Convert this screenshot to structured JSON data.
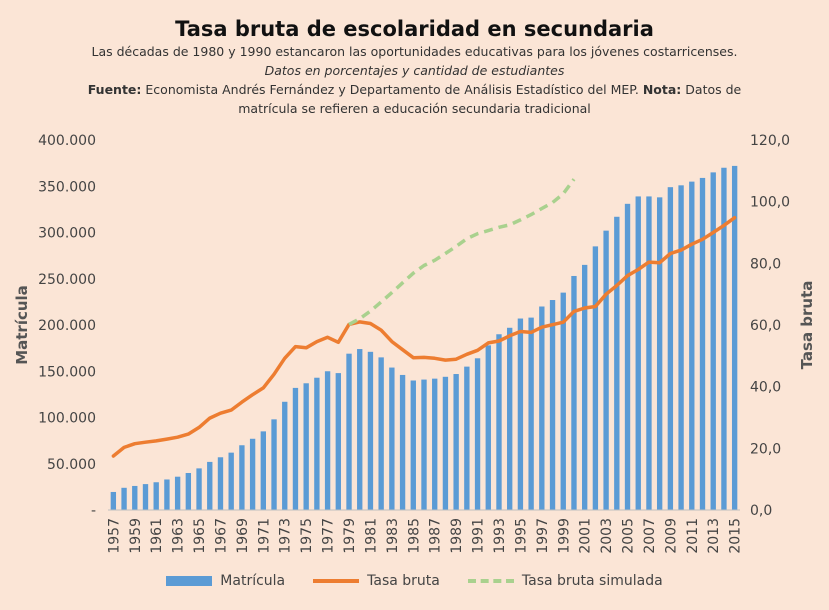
{
  "header": {
    "title": "Tasa bruta de escolaridad en secundaria",
    "subtitle": "Las décadas de 1980 y 1990 estancaron las oportunidades educativas para los jóvenes costarricenses.",
    "units": "Datos en porcentajes y cantidad de estudiantes",
    "source_label": "Fuente:",
    "source_text": "Economista Andrés Fernández y Departamento de Análisis Estadístico del MEP.",
    "note_label": "Nota:",
    "note_text": "Datos de",
    "note_text2": "matrícula se refieren a educación secundaria tradicional"
  },
  "colors": {
    "bar": "#5b9bd5",
    "line": "#ed7d31",
    "dashed": "#a9d18e",
    "background": "#fbe5d6"
  },
  "chart_data": {
    "type": "bar+line",
    "title": "Tasa bruta de escolaridad en secundaria",
    "xlabel": "",
    "ylabel_left": "Matrícula",
    "ylabel_right": "Tasa bruta",
    "ylim_left": [
      0,
      400000
    ],
    "ylim_right": [
      0,
      120
    ],
    "yticks_left": [
      "-",
      "50.000",
      "100.000",
      "150.000",
      "200.000",
      "250.000",
      "300.000",
      "350.000",
      "400.000"
    ],
    "yticks_right": [
      "0,0",
      "20,0",
      "40,0",
      "60,0",
      "80,0",
      "100,0",
      "120,0"
    ],
    "x": [
      1957,
      1958,
      1959,
      1960,
      1961,
      1962,
      1963,
      1964,
      1965,
      1966,
      1967,
      1968,
      1969,
      1970,
      1971,
      1972,
      1973,
      1974,
      1975,
      1976,
      1977,
      1978,
      1979,
      1980,
      1981,
      1982,
      1983,
      1984,
      1985,
      1986,
      1987,
      1988,
      1989,
      1990,
      1991,
      1992,
      1993,
      1994,
      1995,
      1996,
      1997,
      1998,
      1999,
      2000,
      2001,
      2002,
      2003,
      2004,
      2005,
      2006,
      2007,
      2008,
      2009,
      2010,
      2011,
      2012,
      2013,
      2014,
      2015
    ],
    "xtick_labels": [
      "1957",
      "1959",
      "1961",
      "1963",
      "1965",
      "1967",
      "1969",
      "1971",
      "1973",
      "1975",
      "1977",
      "1979",
      "1981",
      "1983",
      "1985",
      "1987",
      "1989",
      "1991",
      "1993",
      "1995",
      "1997",
      "1999",
      "2001",
      "2003",
      "2005",
      "2007",
      "2009",
      "2011",
      "2013",
      "2015"
    ],
    "series": [
      {
        "name": "Matrícula",
        "type": "bar",
        "axis": "left",
        "values": [
          19500,
          24000,
          26000,
          28000,
          30000,
          33000,
          36000,
          40000,
          45000,
          52000,
          57000,
          62000,
          70000,
          77000,
          85000,
          98000,
          117000,
          132000,
          137000,
          143000,
          150000,
          148000,
          169000,
          174000,
          171000,
          165000,
          154000,
          146000,
          140000,
          141000,
          142000,
          144000,
          147000,
          155000,
          164000,
          178000,
          190000,
          197000,
          207000,
          208000,
          220000,
          227000,
          235000,
          253000,
          265000,
          285000,
          302000,
          317000,
          331000,
          339000,
          339000,
          338000,
          349000,
          351000,
          355000,
          359000,
          365000,
          370000,
          372000
        ]
      },
      {
        "name": "Tasa bruta",
        "type": "line",
        "axis": "right",
        "values": [
          17.5,
          20.3,
          21.5,
          22.0,
          22.4,
          23.0,
          23.6,
          24.6,
          26.8,
          29.8,
          31.4,
          32.4,
          35.0,
          37.4,
          39.6,
          44.0,
          49.2,
          53.0,
          52.6,
          54.6,
          56.0,
          54.4,
          60.2,
          61.0,
          60.5,
          58.3,
          54.6,
          52.0,
          49.4,
          49.5,
          49.2,
          48.6,
          48.9,
          50.5,
          51.8,
          54.2,
          54.8,
          56.5,
          57.9,
          57.6,
          59.3,
          60.1,
          60.9,
          64.4,
          65.5,
          66.0,
          70.0,
          72.8,
          76.0,
          78.0,
          80.4,
          80.2,
          83.2,
          84.3,
          86.2,
          87.8,
          90.0,
          92.3,
          94.8
        ]
      },
      {
        "name": "Tasa bruta simulada",
        "type": "line-dashed",
        "axis": "right",
        "x": [
          1979,
          1980,
          1981,
          1982,
          1983,
          1984,
          1985,
          1986,
          1987,
          1988,
          1989,
          1990,
          1991,
          1992,
          1993,
          1994,
          1995,
          1996,
          1997,
          1998,
          1999,
          2000
        ],
        "values": [
          60.2,
          62.0,
          64.5,
          67.5,
          70.5,
          73.7,
          76.8,
          79.3,
          81.0,
          83.2,
          85.5,
          88.0,
          89.6,
          90.6,
          91.7,
          92.5,
          94.1,
          95.8,
          97.8,
          99.7,
          102.6,
          107.3
        ]
      }
    ],
    "legend": [
      "Matrícula",
      "Tasa bruta",
      "Tasa bruta simulada"
    ],
    "legend_position": "bottom"
  }
}
